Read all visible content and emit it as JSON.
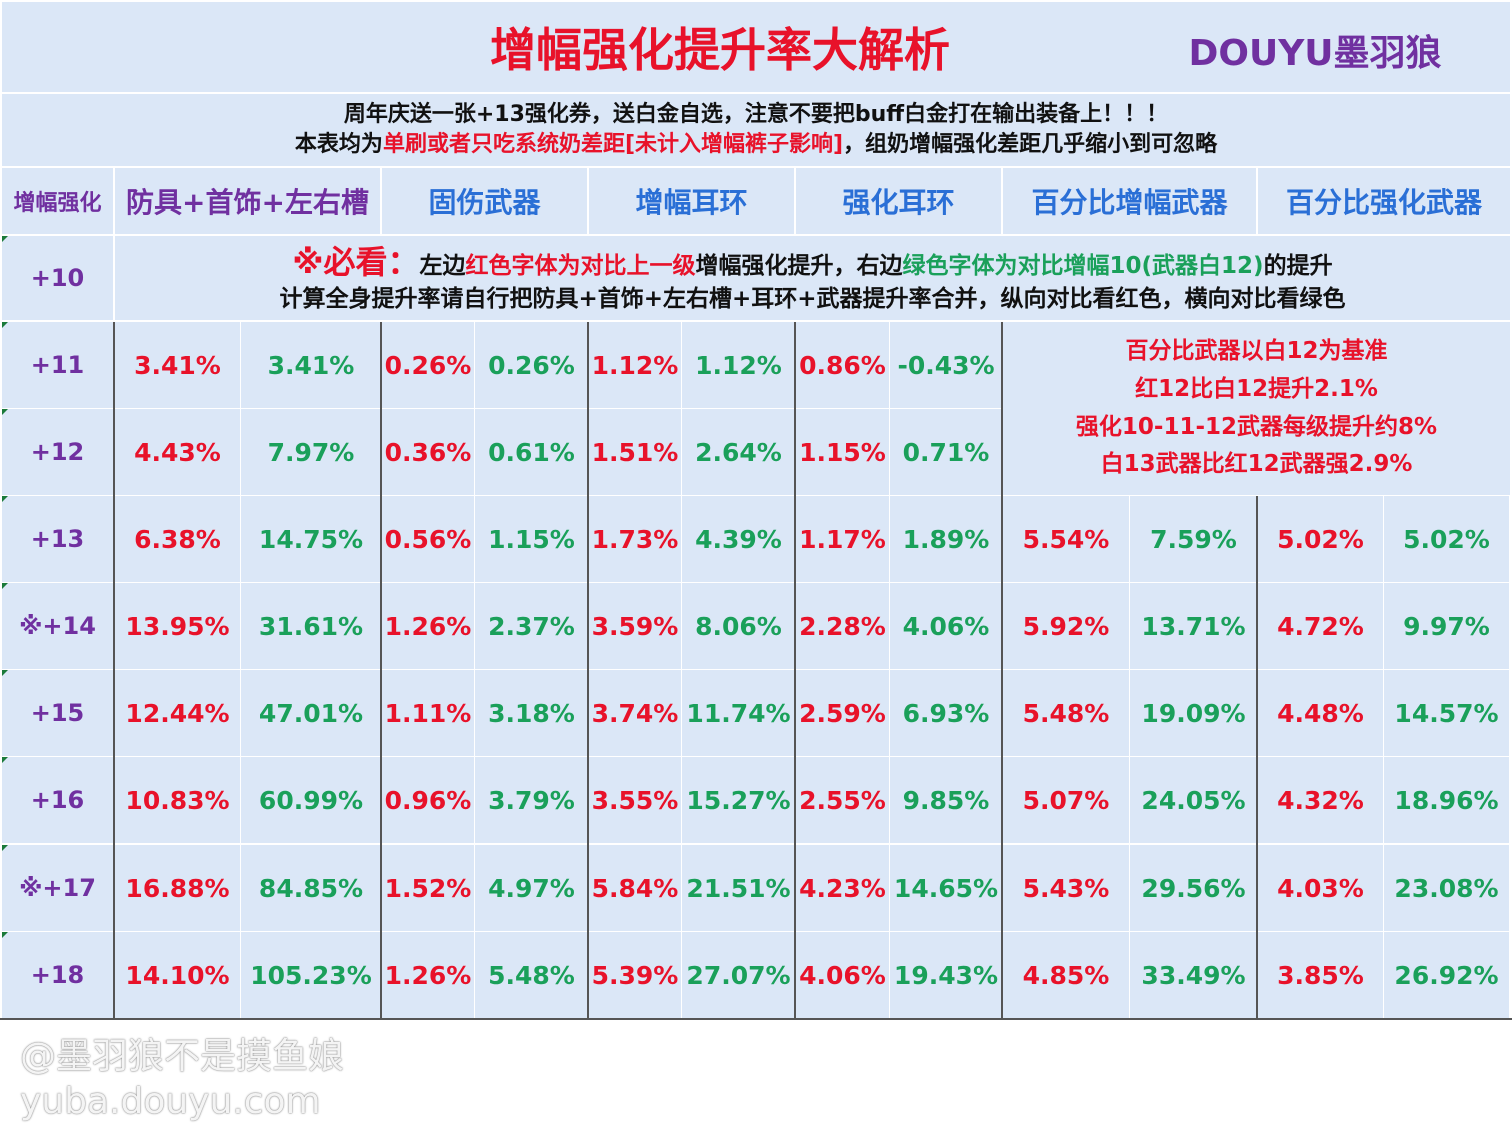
{
  "header": {
    "title": "增幅强化提升率大解析",
    "author": "DOUYU墨羽狼",
    "notice_line1": "周年庆送一张+13强化券，送白金自选，注意不要把buff白金打在输出装备上！！！",
    "notice_line2_a": "本表均为",
    "notice_line2_b": "单刷或者只吃系统奶差距[未计入增幅裤子影响]",
    "notice_line2_c": "，组奶增幅强化差距几乎缩小到可忽略"
  },
  "columns": {
    "level": "增幅强化",
    "armor": "防具+首饰+左右槽",
    "fixed_weapon": "固伤武器",
    "amp_earring": "增幅耳环",
    "reinforce_earring": "强化耳环",
    "pct_amp_weapon": "百分比增幅武器",
    "pct_reinforce_weapon": "百分比强化武器"
  },
  "note10": {
    "must": "※必看：",
    "a": "左边",
    "b": "红色字体为对比上一级",
    "c": "增幅强化提升，右边",
    "d": "绿色字体为对比增幅10(武器白12)",
    "e": "的提升",
    "line2": "计算全身提升率请自行把防具+首饰+左右槽+耳环+武器提升率合并，纵向对比看红色，横向对比看绿色"
  },
  "weapon_note": [
    "百分比武器以白12为基准",
    "红12比白12提升2.1%",
    "强化10-11-12武器每级提升约8%",
    "白13武器比红12武器强2.9%"
  ],
  "rows": [
    {
      "level": "+10"
    },
    {
      "level": "+11",
      "v": [
        "3.41%",
        "3.41%",
        "0.26%",
        "0.26%",
        "1.12%",
        "1.12%",
        "0.86%",
        "-0.43%"
      ]
    },
    {
      "level": "+12",
      "v": [
        "4.43%",
        "7.97%",
        "0.36%",
        "0.61%",
        "1.51%",
        "2.64%",
        "1.15%",
        "0.71%"
      ]
    },
    {
      "level": "+13",
      "v": [
        "6.38%",
        "14.75%",
        "0.56%",
        "1.15%",
        "1.73%",
        "4.39%",
        "1.17%",
        "1.89%",
        "5.54%",
        "7.59%",
        "5.02%",
        "5.02%"
      ]
    },
    {
      "level": "※+14",
      "v": [
        "13.95%",
        "31.61%",
        "1.26%",
        "2.37%",
        "3.59%",
        "8.06%",
        "2.28%",
        "4.06%",
        "5.92%",
        "13.71%",
        "4.72%",
        "9.97%"
      ]
    },
    {
      "level": "+15",
      "v": [
        "12.44%",
        "47.01%",
        "1.11%",
        "3.18%",
        "3.74%",
        "11.74%",
        "2.59%",
        "6.93%",
        "5.48%",
        "19.09%",
        "4.48%",
        "14.57%"
      ]
    },
    {
      "level": "+16",
      "v": [
        "10.83%",
        "60.99%",
        "0.96%",
        "3.79%",
        "3.55%",
        "15.27%",
        "2.55%",
        "9.85%",
        "5.07%",
        "24.05%",
        "4.32%",
        "18.96%"
      ]
    },
    {
      "level": "※+17",
      "v": [
        "16.88%",
        "84.85%",
        "1.52%",
        "4.97%",
        "5.84%",
        "21.51%",
        "4.23%",
        "14.65%",
        "5.43%",
        "29.56%",
        "4.03%",
        "23.08%"
      ]
    },
    {
      "level": "+18",
      "v": [
        "14.10%",
        "105.23%",
        "1.26%",
        "5.48%",
        "5.39%",
        "27.07%",
        "4.06%",
        "19.43%",
        "4.85%",
        "33.49%",
        "3.85%",
        "26.92%"
      ]
    }
  ],
  "watermark": {
    "line1": "@墨羽狼不是摸鱼娘",
    "line2": "yuba.douyu.com"
  },
  "colors": {
    "cell_bg": "#dbe7f7",
    "red": "#e8122a",
    "green": "#1aa05a",
    "purple": "#7030a0",
    "blue": "#2a6fd6"
  }
}
